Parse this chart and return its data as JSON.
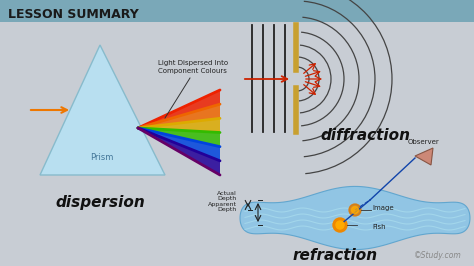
{
  "bg_color": "#c8cdd4",
  "title": "LESSON SUMMARY",
  "title_color": "#1a1a1a",
  "title_fontsize": 9,
  "title_bar_color": "#7aa8b8",
  "dispersion_label": "dispersion",
  "diffraction_label": "diffraction",
  "refraction_label": "refraction",
  "label_fontsize": 11,
  "prism_label": "Prism",
  "light_dispersed_text": "Light Dispersed Into\nComponent Colours",
  "actual_depth_text": "Actual\nDepth",
  "apparent_depth_text": "Apparent\nDepth",
  "observer_text": "Observer",
  "image_text": "Image",
  "fish_text": "Fish",
  "study_watermark": "©Study.com",
  "prism_fill": "#b8dff0",
  "prism_edge": "#88bbcc",
  "barrier_color": "#c8a030",
  "wave_color": "#555555",
  "rainbow_colors": [
    "#ee2200",
    "#ee6600",
    "#ddaa00",
    "#33bb00",
    "#0044dd",
    "#220099",
    "#660066"
  ]
}
